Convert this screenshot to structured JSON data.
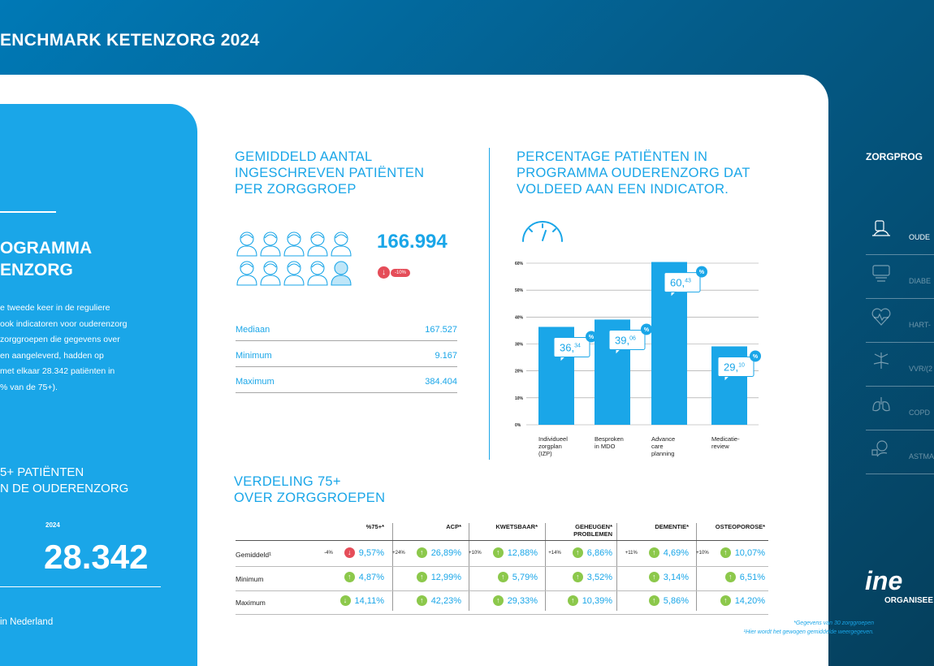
{
  "header": {
    "title": "ENCHMARK KETENZORG 2024"
  },
  "left_panel": {
    "title_line1": "OGRAMMA",
    "title_line2": "ENZORG",
    "body_lines": [
      "e tweede keer in de reguliere",
      "ook indicatoren voor ouderenzorg",
      "zorggroepen die gegevens over",
      "en aangeleverd, hadden op",
      "met elkaar 28.342 patiënten in",
      "% van de 75+)."
    ],
    "sub_line1": "5+ PATIËNTEN",
    "sub_line2": "N DE OUDERENZORG",
    "year": "2024",
    "big_value": "28.342",
    "footer": "in Nederland"
  },
  "patients": {
    "title_lines": [
      "GEMIDDELD AANTAL",
      "INGESCHREVEN PATIËNTEN",
      "PER ZORGGROEP"
    ],
    "value": "166.994",
    "change": "-10%",
    "stats": [
      {
        "label": "Mediaan",
        "value": "167.527"
      },
      {
        "label": "Minimum",
        "value": "9.167"
      },
      {
        "label": "Maximum",
        "value": "384.404"
      }
    ]
  },
  "indicator": {
    "title_lines": [
      "PERCENTAGE PATIËNTEN IN",
      "PROGRAMMA OUDERENZORG DAT",
      "VOLDEED AAN EEN INDICATOR."
    ]
  },
  "chart_data": {
    "type": "bar",
    "ylim": [
      0,
      60
    ],
    "yticks": [
      "0%",
      "10%",
      "20%",
      "30%",
      "40%",
      "50%",
      "60%"
    ],
    "grid": true,
    "categories": [
      [
        "Individueel",
        "zorgplan",
        "(IZP)"
      ],
      [
        "Besproken",
        "in MDO"
      ],
      [
        "Advance",
        "care",
        "planning"
      ],
      [
        "Medicatie-",
        "review"
      ]
    ],
    "values": [
      36.34,
      39.06,
      60.43,
      29.1
    ],
    "labels": [
      {
        "int": "36,",
        "dec": "34"
      },
      {
        "int": "39,",
        "dec": "06"
      },
      {
        "int": "60,",
        "dec": "43"
      },
      {
        "int": "29,",
        "dec": "10"
      }
    ],
    "badge": "%",
    "color": "#1aa6e8"
  },
  "distribution": {
    "title_lines": [
      "VERDELING  75+",
      "OVER ZORGGROEPEN"
    ],
    "columns": [
      [
        "%75+*"
      ],
      [
        "ACP*"
      ],
      [
        "KWETSBAAR*"
      ],
      [
        "GEHEUGEN*",
        "PROBLEMEN"
      ],
      [
        "DEMENTIE*"
      ],
      [
        "OSTEOPOROSE*"
      ]
    ],
    "rows": [
      {
        "label": "Gemiddeld¹",
        "cells": [
          {
            "delta": "-4%",
            "dir": "down",
            "value": "9,57%"
          },
          {
            "delta": "+24%",
            "dir": "up",
            "value": "26,89%"
          },
          {
            "delta": "+10%",
            "dir": "up",
            "value": "12,88%"
          },
          {
            "delta": "+14%",
            "dir": "up",
            "value": "6,86%"
          },
          {
            "delta": "+11%",
            "dir": "up",
            "value": "4,69%"
          },
          {
            "delta": "+10%",
            "dir": "up",
            "value": "10,07%"
          }
        ]
      },
      {
        "label": "Minimum",
        "cells": [
          {
            "delta": "",
            "dir": "up",
            "value": "4,87%"
          },
          {
            "delta": "",
            "dir": "up",
            "value": "12,99%"
          },
          {
            "delta": "",
            "dir": "up",
            "value": "5,79%"
          },
          {
            "delta": "",
            "dir": "up",
            "value": "3,52%"
          },
          {
            "delta": "",
            "dir": "up",
            "value": "3,14%"
          },
          {
            "delta": "",
            "dir": "up",
            "value": "6,51%"
          }
        ]
      },
      {
        "label": "Maximum",
        "cells": [
          {
            "delta": "",
            "dir": "down-green",
            "value": "14,11%"
          },
          {
            "delta": "",
            "dir": "up",
            "value": "42,23%"
          },
          {
            "delta": "",
            "dir": "up",
            "value": "29,33%"
          },
          {
            "delta": "",
            "dir": "up",
            "value": "10,39%"
          },
          {
            "delta": "",
            "dir": "up",
            "value": "5,86%"
          },
          {
            "delta": "",
            "dir": "up",
            "value": "14,20%"
          }
        ]
      }
    ],
    "footnote1": "*Gegevens van 30 zorggroepen",
    "footnote2": "¹Hier wordt het gewogen gemiddelde weergegeven."
  },
  "sidebar": {
    "title": "ZORGPROG",
    "items": [
      {
        "label": "OUDE",
        "icon": "elderly-care-icon",
        "active": true
      },
      {
        "label": "DIABE",
        "icon": "diabetes-icon",
        "active": false
      },
      {
        "label": "HART-",
        "icon": "heart-icon",
        "active": false
      },
      {
        "label": "VVR/(2",
        "icon": "vessels-icon",
        "active": false
      },
      {
        "label": "COPD",
        "icon": "lungs-icon",
        "active": false
      },
      {
        "label": "ASTMA",
        "icon": "asthma-icon",
        "active": false
      }
    ]
  },
  "logo": {
    "mark": "ine",
    "sub": "ORGANISEE"
  }
}
